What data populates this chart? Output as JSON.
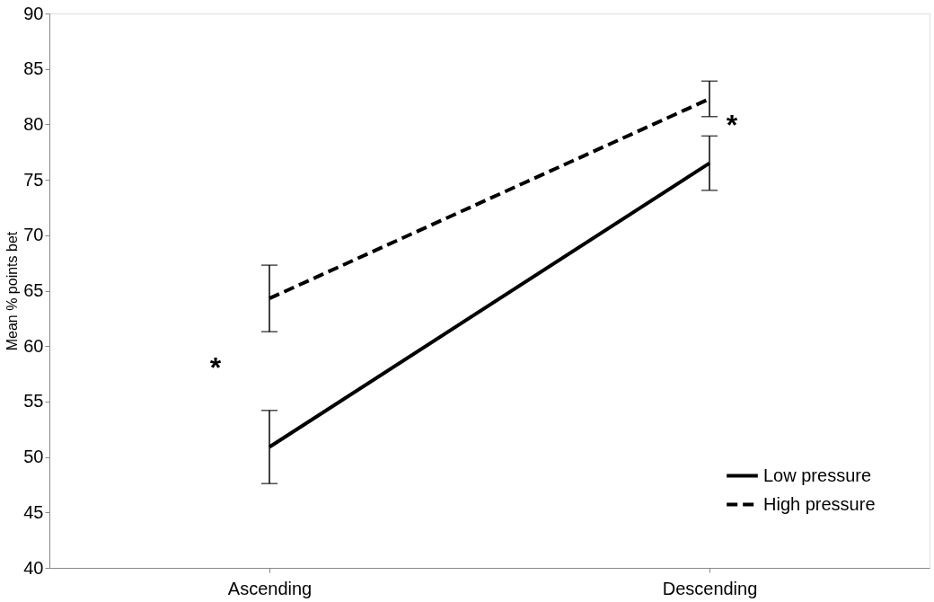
{
  "chart_data": {
    "type": "line",
    "ylabel": "Mean % points bet",
    "categories": [
      "Ascending",
      "Descending"
    ],
    "series": [
      {
        "name": "Low pressure",
        "color": "#000000",
        "line_style": "solid",
        "values": [
          50.9,
          76.5
        ],
        "errors": [
          3.3,
          2.45
        ]
      },
      {
        "name": "High pressure",
        "color": "#000000",
        "line_style": "dashed",
        "values": [
          64.3,
          82.3
        ],
        "errors": [
          3.0,
          1.6
        ]
      }
    ],
    "ylim": [
      40,
      90
    ],
    "yticks": [
      40,
      45,
      50,
      55,
      60,
      65,
      70,
      75,
      80,
      85,
      90
    ],
    "grid": false,
    "legend": "bottom right",
    "marker": "none",
    "annotations": [
      "*",
      "*"
    ]
  }
}
